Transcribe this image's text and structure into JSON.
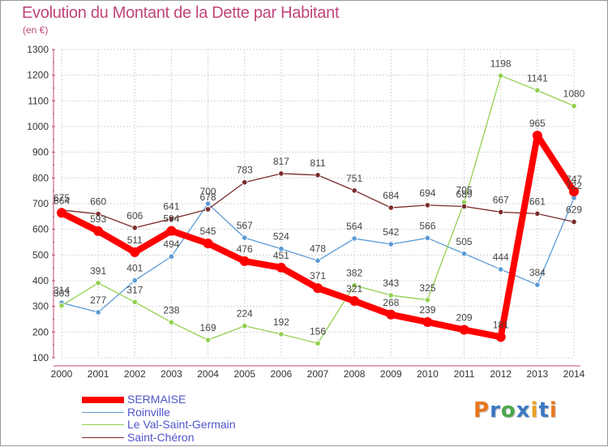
{
  "chart_data": {
    "type": "line",
    "title": "Evolution du Montant de la Dette par Habitant",
    "subtitle": "(en €)",
    "xlabel": "",
    "ylabel": "",
    "x": [
      "2000",
      "2001",
      "2002",
      "2003",
      "2004",
      "2005",
      "2006",
      "2007",
      "2008",
      "2009",
      "2010",
      "2011",
      "2012",
      "2013",
      "2014"
    ],
    "ylim": [
      100,
      1300
    ],
    "yticks": [
      100,
      200,
      300,
      400,
      500,
      600,
      700,
      800,
      900,
      1000,
      1100,
      1200,
      1300
    ],
    "grid": true,
    "legend_position": "bottom-left",
    "series": [
      {
        "name": "SERMAISE",
        "color": "#ff0000",
        "values": [
          664,
          593,
          511,
          594,
          545,
          476,
          451,
          371,
          321,
          268,
          239,
          209,
          181,
          965,
          747
        ]
      },
      {
        "name": "Roinville",
        "color": "#5b9bd5",
        "values": [
          314,
          277,
          401,
          494,
          700,
          567,
          524,
          478,
          564,
          542,
          566,
          505,
          444,
          384,
          722
        ]
      },
      {
        "name": "Le Val-Saint-Germain",
        "color": "#92d050",
        "values": [
          303,
          391,
          317,
          238,
          169,
          224,
          192,
          156,
          382,
          343,
          325,
          705,
          1198,
          1141,
          1080
        ]
      },
      {
        "name": "Saint-Chéron",
        "color": "#7b2c2c",
        "values": [
          675,
          660,
          606,
          641,
          678,
          783,
          817,
          811,
          751,
          684,
          694,
          689,
          667,
          661,
          629
        ]
      }
    ]
  },
  "logo": {
    "text": "Proxiti",
    "colors": [
      "#e8761e",
      "#3a78c2",
      "#4aa84a",
      "#3a78c2",
      "#e8a11e",
      "#3a78c2",
      "#e8761e"
    ]
  }
}
